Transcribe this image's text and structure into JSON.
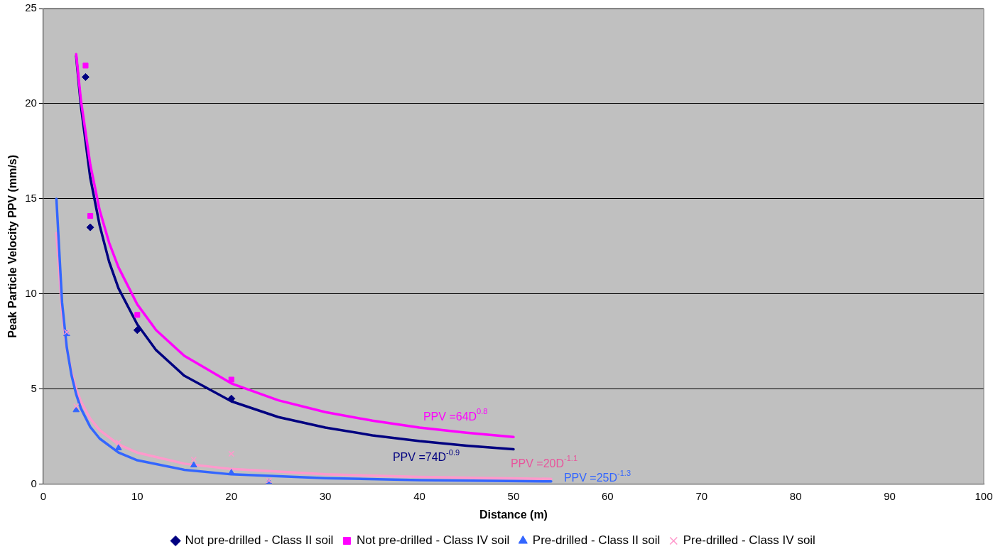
{
  "chart_data": {
    "type": "scatter",
    "xlabel": "Distance (m)",
    "ylabel": "Peak Particle Velocity PPV (mm/s)",
    "xlim": [
      0,
      100
    ],
    "xticks": [
      0,
      10,
      20,
      30,
      40,
      50,
      60,
      70,
      80,
      90,
      100
    ],
    "ylim": [
      0,
      25
    ],
    "yticks": [
      0,
      5,
      10,
      15,
      20,
      25
    ],
    "grid": "y",
    "legend": "bottom",
    "series": [
      {
        "name": "Not pre-drilled - Class II soil",
        "color": "#000080",
        "marker": "diamond",
        "x": [
          4.5,
          5,
          10,
          20
        ],
        "values": [
          21.4,
          13.5,
          8.1,
          4.5
        ]
      },
      {
        "name": "Not pre-drilled - Class IV soil",
        "color": "#ff00ff",
        "marker": "square",
        "x": [
          4.5,
          5,
          10,
          20
        ],
        "values": [
          22.0,
          14.1,
          8.9,
          5.5
        ]
      },
      {
        "name": "Pre-drilled - Class II soil",
        "color": "#3366ff",
        "marker": "triangle",
        "x": [
          2.5,
          3.5,
          8,
          16,
          20,
          24
        ],
        "values": [
          7.9,
          3.9,
          1.9,
          1.0,
          0.6,
          0.1
        ]
      },
      {
        "name": "Pre-drilled - Class IV soil",
        "color": "#ff99cc",
        "marker": "cross",
        "x": [
          2.5,
          3.5,
          8,
          16,
          20,
          24
        ],
        "values": [
          8.0,
          4.1,
          2.2,
          1.3,
          1.6,
          0.2
        ]
      },
      {
        "type": "line",
        "color": "#000080",
        "marker": "none",
        "x": [
          3.5,
          4,
          5,
          6,
          7,
          8,
          10,
          12,
          15,
          20,
          25,
          30,
          35,
          40,
          45,
          50
        ],
        "values": [
          22.5,
          19.9,
          16.1,
          13.6,
          11.7,
          10.3,
          8.4,
          7.05,
          5.7,
          4.36,
          3.53,
          2.98,
          2.57,
          2.27,
          2.03,
          1.84
        ]
      },
      {
        "type": "line",
        "color": "#ff00ff",
        "marker": "none",
        "x": [
          3.5,
          4,
          5,
          6,
          7,
          8,
          10,
          12,
          15,
          20,
          25,
          30,
          35,
          40,
          45,
          50
        ],
        "values": [
          22.6,
          20.2,
          16.8,
          14.4,
          12.7,
          11.4,
          9.45,
          8.1,
          6.75,
          5.3,
          4.41,
          3.79,
          3.34,
          2.98,
          2.71,
          2.48
        ]
      },
      {
        "type": "line",
        "color": "#ff99cc",
        "marker": "none",
        "x": [
          1.4,
          2,
          2.5,
          3,
          3.5,
          4,
          5,
          6,
          8,
          10,
          15,
          20,
          30,
          40,
          54
        ],
        "values": [
          13.2,
          9.05,
          7.15,
          5.9,
          5.01,
          4.36,
          3.44,
          2.84,
          2.1,
          1.66,
          1.08,
          0.8,
          0.52,
          0.38,
          0.28
        ]
      },
      {
        "type": "line",
        "color": "#3366ff",
        "marker": "none",
        "x": [
          1.4,
          2,
          2.5,
          3,
          3.5,
          4,
          5,
          6,
          8,
          10,
          15,
          20,
          30,
          40,
          54
        ],
        "values": [
          15.0,
          9.56,
          7.2,
          5.74,
          4.73,
          3.99,
          3.01,
          2.4,
          1.67,
          1.26,
          0.76,
          0.52,
          0.32,
          0.22,
          0.15
        ]
      }
    ],
    "annotations": [
      "PPV =74D$^{-0.9}$",
      "PPV =64D$^{0.8}$",
      "PPV =20D$^{-1.1}$",
      "PPV =25D$^{-1.3}$"
    ]
  }
}
